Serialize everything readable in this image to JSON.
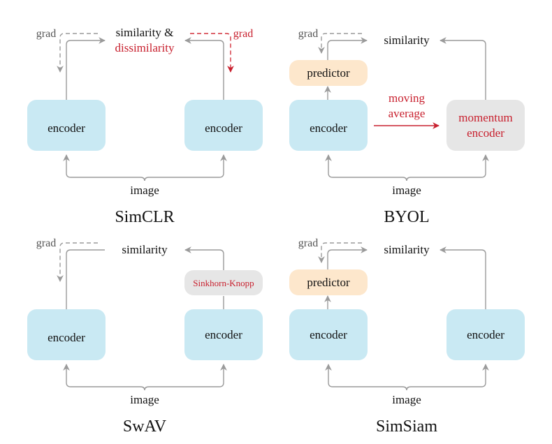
{
  "colors": {
    "encoder": "#c9e9f3",
    "predictor": "#fde7cc",
    "momentum": "#e6e6e6",
    "accent_red": "#c8202e",
    "arrow": "#9a9a9a"
  },
  "simclr": {
    "title": "SimCLR",
    "similarity": "similarity &",
    "dissimilarity": "dissimilarity",
    "grad_left": "grad",
    "grad_right": "grad",
    "encoder_left": "encoder",
    "encoder_right": "encoder",
    "image": "image"
  },
  "byol": {
    "title": "BYOL",
    "similarity": "similarity",
    "grad": "grad",
    "predictor": "predictor",
    "encoder": "encoder",
    "moving": "moving",
    "average": "average",
    "momentum": "momentum",
    "momentum_encoder": "encoder",
    "image": "image"
  },
  "swav": {
    "title": "SwAV",
    "similarity": "similarity",
    "grad": "grad",
    "sinkhorn": "Sinkhorn-Knopp",
    "encoder_left": "encoder",
    "encoder_right": "encoder",
    "image": "image"
  },
  "simsiam": {
    "title": "SimSiam",
    "similarity": "similarity",
    "grad": "grad",
    "predictor": "predictor",
    "encoder_left": "encoder",
    "encoder_right": "encoder",
    "image": "image"
  }
}
